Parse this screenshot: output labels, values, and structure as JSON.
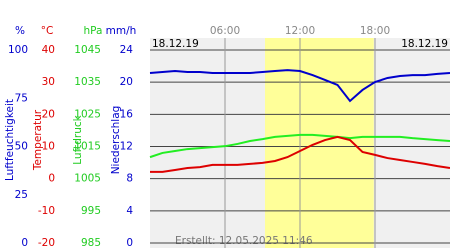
{
  "chart_data": {
    "type": "line",
    "date_left": "18.12.19",
    "date_right": "18.12.19",
    "footer": "Erstellt: 12.05.2025 11:46",
    "xlim": [
      0,
      24
    ],
    "xticks": [
      {
        "value": 6,
        "label": "06:00"
      },
      {
        "value": 12,
        "label": "12:00"
      },
      {
        "value": 18,
        "label": "18:00"
      }
    ],
    "daylight": [
      9.2,
      17.9
    ],
    "grid": true,
    "axes": [
      {
        "unit": "%",
        "title": "Luftfeuchtigkeit",
        "color": "#0000cc",
        "ylim": [
          0,
          100
        ],
        "yticks": [
          0,
          25,
          50,
          75,
          100
        ]
      },
      {
        "unit": "°C",
        "title": "Temperatur",
        "color": "#dd0000",
        "ylim": [
          -20,
          40
        ],
        "yticks": [
          -20,
          -10,
          0,
          10,
          20,
          30,
          40
        ]
      },
      {
        "unit": "hPa",
        "title": "Luftdruck",
        "color": "#22cc22",
        "ylim": [
          985,
          1045
        ],
        "yticks": [
          985,
          995,
          1005,
          1015,
          1025,
          1035,
          1045
        ]
      },
      {
        "unit": "mm/h",
        "title": "Niederschlag",
        "color": "#0000cc",
        "ylim": [
          0,
          24
        ],
        "yticks": [
          0,
          4,
          8,
          12,
          16,
          20,
          24
        ]
      }
    ],
    "x": [
      0,
      1,
      2,
      3,
      4,
      5,
      6,
      7,
      8,
      9,
      10,
      11,
      12,
      13,
      14,
      15,
      16,
      17,
      18,
      19,
      20,
      21,
      22,
      23,
      24
    ],
    "series": [
      {
        "name": "Luftfeuchtigkeit",
        "color": "#0000cc",
        "axis": 0,
        "values": [
          88.1,
          88.6,
          89.1,
          88.6,
          88.6,
          88.1,
          88.1,
          88.1,
          88.1,
          88.6,
          89.1,
          89.6,
          89.1,
          87,
          84.5,
          81.9,
          73.6,
          79.3,
          83.4,
          85.5,
          86.5,
          87,
          87,
          87.6,
          88.1
        ]
      },
      {
        "name": "Luftdruck",
        "color": "#22ee22",
        "axis": 2,
        "values": [
          1011.7,
          1013,
          1013.6,
          1014.2,
          1014.5,
          1014.8,
          1015.1,
          1015.8,
          1016.7,
          1017.3,
          1018,
          1018.3,
          1018.6,
          1018.6,
          1018.3,
          1018,
          1017.6,
          1018,
          1018,
          1018,
          1018,
          1017.6,
          1017.3,
          1017,
          1016.7
        ]
      },
      {
        "name": "Temperatur",
        "color": "#dd0000",
        "axis": 1,
        "values": [
          2.1,
          2.1,
          2.7,
          3.3,
          3.6,
          4.3,
          4.3,
          4.3,
          4.6,
          4.9,
          5.5,
          6.7,
          8.6,
          10.5,
          12,
          13,
          12,
          8.3,
          7.4,
          6.4,
          5.8,
          5.2,
          4.6,
          3.9,
          3.3
        ]
      }
    ]
  }
}
